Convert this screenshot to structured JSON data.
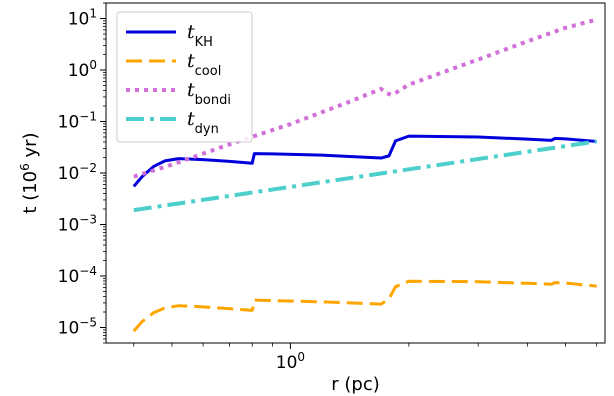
{
  "chart_data": {
    "type": "line",
    "xscale": "log",
    "yscale": "log",
    "xlim": [
      0.34,
      6.3
    ],
    "ylim": [
      5e-06,
      20
    ],
    "xlabel": "r (pc)",
    "ylabel": "t (10",
    "ylabel_sup": "6",
    "ylabel_tail": " yr)",
    "xticks": [
      {
        "value": 1,
        "label": "10",
        "sup": "0"
      }
    ],
    "yticks": [
      {
        "value": 1e-05,
        "label": "10",
        "sup": "−5"
      },
      {
        "value": 0.0001,
        "label": "10",
        "sup": "−4"
      },
      {
        "value": 0.001,
        "label": "10",
        "sup": "−3"
      },
      {
        "value": 0.01,
        "label": "10",
        "sup": "−2"
      },
      {
        "value": 0.1,
        "label": "10",
        "sup": "−1"
      },
      {
        "value": 1,
        "label": "10",
        "sup": "0"
      },
      {
        "value": 10,
        "label": "10",
        "sup": "1"
      }
    ],
    "grid": false,
    "legend_position": "upper-left",
    "series": [
      {
        "name": "t",
        "sub": "KH",
        "color": "#0000dd",
        "dash": "",
        "width": 3,
        "x": [
          0.4,
          0.42,
          0.45,
          0.48,
          0.52,
          0.6,
          0.7,
          0.8,
          0.8,
          0.81,
          0.9,
          1.2,
          1.5,
          1.7,
          1.78,
          1.85,
          2.0,
          3.0,
          4.0,
          4.6,
          4.7,
          5.0,
          6.0
        ],
        "y": [
          0.0055,
          0.0085,
          0.0135,
          0.0172,
          0.019,
          0.0182,
          0.0168,
          0.0155,
          0.0158,
          0.0238,
          0.0235,
          0.0222,
          0.0205,
          0.0195,
          0.0215,
          0.042,
          0.052,
          0.05,
          0.0455,
          0.043,
          0.047,
          0.046,
          0.041
        ]
      },
      {
        "name": "t",
        "sub": "cool",
        "color": "#ffa500",
        "dash": "16 7",
        "width": 3,
        "x": [
          0.4,
          0.42,
          0.45,
          0.48,
          0.52,
          0.6,
          0.7,
          0.8,
          0.8,
          0.81,
          0.9,
          1.2,
          1.5,
          1.7,
          1.78,
          1.85,
          2.0,
          3.0,
          4.0,
          4.6,
          4.7,
          5.0,
          6.0
        ],
        "y": [
          8.5e-06,
          1.3e-05,
          1.95e-05,
          2.4e-05,
          2.65e-05,
          2.52e-05,
          2.32e-05,
          2.15e-05,
          2.15e-05,
          3.4e-05,
          3.33e-05,
          3.15e-05,
          2.95e-05,
          2.85e-05,
          3.6e-05,
          6.2e-05,
          7.9e-05,
          7.75e-05,
          7.22e-05,
          6.93e-05,
          7.45e-05,
          7.32e-05,
          6.35e-05
        ]
      },
      {
        "name": "t",
        "sub": "bondi",
        "color": "#d070d8",
        "dash": "4 5",
        "width": 4,
        "x": [
          0.4,
          0.5,
          0.7,
          1.0,
          1.4,
          1.7,
          1.75,
          1.8,
          1.85,
          2.0,
          3.0,
          4.0,
          5.0,
          6.0
        ],
        "y": [
          0.0085,
          0.0145,
          0.036,
          0.089,
          0.235,
          0.43,
          0.36,
          0.33,
          0.36,
          0.52,
          1.6,
          3.6,
          6.6,
          9.5
        ]
      },
      {
        "name": "t",
        "sub": "dyn",
        "color": "#4dd0cc",
        "dash": "18 6 4 6",
        "width": 4,
        "x": [
          0.4,
          6.0
        ],
        "y": [
          0.0019,
          0.041
        ]
      }
    ]
  }
}
